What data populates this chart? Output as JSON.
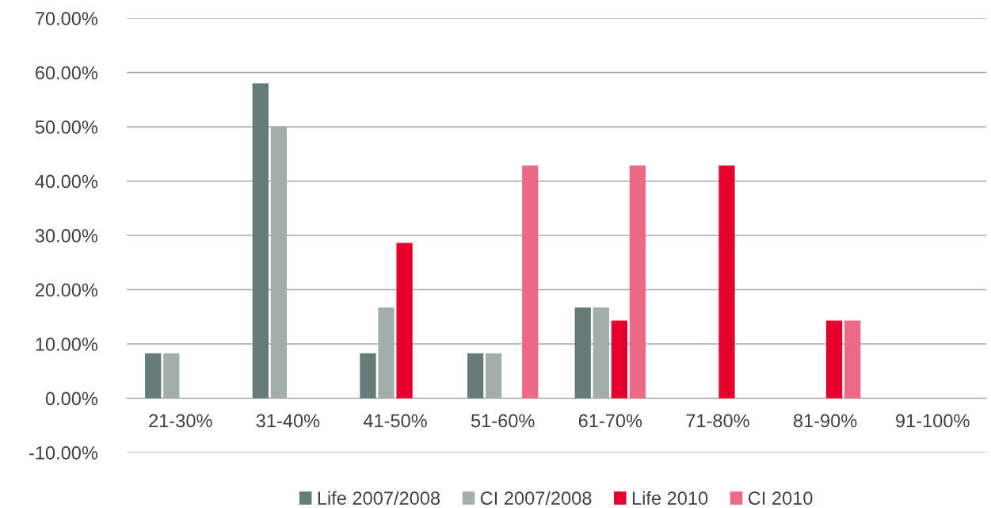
{
  "chart_data": {
    "type": "bar",
    "categories": [
      "21-30%",
      "31-40%",
      "41-50%",
      "51-60%",
      "61-70%",
      "71-80%",
      "81-90%",
      "91-100%"
    ],
    "series": [
      {
        "name": "Life 2007/2008",
        "color": "#657c76",
        "values": [
          8.3,
          58,
          8.3,
          8.3,
          16.7,
          0,
          0,
          0
        ]
      },
      {
        "name": "CI 2007/2008",
        "color": "#a3aeaa",
        "values": [
          8.3,
          50,
          16.7,
          8.3,
          16.7,
          0,
          0,
          0
        ]
      },
      {
        "name": "Life 2010",
        "color": "#e4002b",
        "values": [
          0,
          0,
          28.6,
          0,
          14.3,
          42.9,
          14.3,
          0
        ]
      },
      {
        "name": "CI 2010",
        "color": "#ec6a87",
        "values": [
          0,
          0,
          0,
          42.9,
          42.9,
          0,
          14.3,
          0
        ]
      }
    ],
    "ylim": [
      -10,
      70
    ],
    "yticks": [
      {
        "value": -10,
        "label": "-10.00%"
      },
      {
        "value": 0,
        "label": "0.00%"
      },
      {
        "value": 10,
        "label": "10.00%"
      },
      {
        "value": 20,
        "label": "20.00%"
      },
      {
        "value": 30,
        "label": "30.00%"
      },
      {
        "value": 40,
        "label": "40.00%"
      },
      {
        "value": 50,
        "label": "50.00%"
      },
      {
        "value": 60,
        "label": "60.00%"
      },
      {
        "value": 70,
        "label": "70.00%"
      }
    ],
    "grid": "y",
    "legend": "bottom"
  }
}
